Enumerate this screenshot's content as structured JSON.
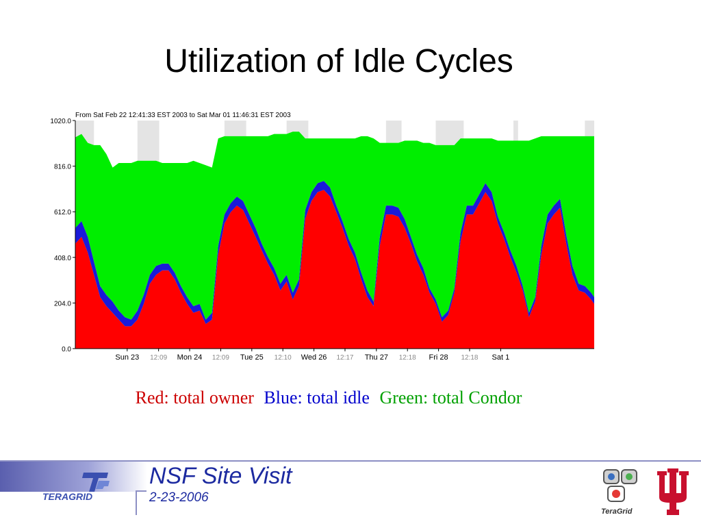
{
  "slide": {
    "title": "Utilization of Idle Cycles",
    "legend": {
      "red": "Red: total owner",
      "blue": "Blue: total idle",
      "green": "Green: total Condor"
    },
    "footer": {
      "title": "NSF Site Visit",
      "date": "2-23-2006",
      "left_logo_text": "TERAGRID",
      "right_logo_text": "TeraGrid"
    }
  },
  "colors": {
    "owner": "#ff0000",
    "idle": "#1a1ad9",
    "condor": "#00ee00",
    "legend_red": "#cc0000",
    "legend_blue": "#0000cc",
    "legend_green": "#00a000",
    "footer_text": "#1c2aa0",
    "iu_red": "#c8102e"
  },
  "chart_data": {
    "type": "area",
    "title": "From Sat Feb 22 12:41:33 EST 2003 to Sat Mar 01 11:46:31 EST 2003",
    "xlabel": "",
    "ylabel": "",
    "ylim": [
      0,
      1020
    ],
    "yticks": [
      "0.0",
      "204.0",
      "408.0",
      "612.0",
      "816.0",
      "1020.0"
    ],
    "xticks": [
      {
        "label": "Sun 23",
        "x": 16.7,
        "style": "day"
      },
      {
        "label": "12:09",
        "x": 26.8,
        "style": "noon"
      },
      {
        "label": "Mon 24",
        "x": 36.8,
        "style": "day"
      },
      {
        "label": "12:09",
        "x": 46.8,
        "style": "noon"
      },
      {
        "label": "Tue 25",
        "x": 56.8,
        "style": "day"
      },
      {
        "label": "12:10",
        "x": 66.8,
        "style": "noon"
      },
      {
        "label": "Wed 26",
        "x": 76.8,
        "style": "day"
      },
      {
        "label": "12:17",
        "x": 86.8,
        "style": "noon"
      },
      {
        "label": "Thu 27",
        "x": 96.9,
        "style": "day"
      },
      {
        "label": "12:18",
        "x": 106.9,
        "style": "noon"
      },
      {
        "label": "Fri 28",
        "x": 116.9,
        "style": "day"
      },
      {
        "label": "12:18",
        "x": 126.9,
        "style": "noon"
      },
      {
        "label": "Sat 1",
        "x": 136.9,
        "style": "day"
      }
    ],
    "x_unit": "hours since start",
    "x": [
      0,
      2,
      4,
      6,
      8,
      10,
      12,
      14,
      16,
      18,
      20,
      22,
      24,
      26,
      28,
      30,
      32,
      34,
      36,
      38,
      40,
      42,
      44,
      46,
      48,
      50,
      52,
      54,
      56,
      58,
      60,
      62,
      64,
      66,
      68,
      70,
      72,
      74,
      76,
      78,
      80,
      82,
      84,
      86,
      88,
      90,
      92,
      94,
      96,
      98,
      100,
      102,
      104,
      106,
      108,
      110,
      112,
      114,
      116,
      118,
      120,
      122,
      124,
      126,
      128,
      130,
      132,
      134,
      136,
      138,
      140,
      142,
      144,
      146,
      148,
      150,
      152,
      154,
      156,
      158,
      160,
      162,
      164,
      166,
      167
    ],
    "series": [
      {
        "name": "total owner",
        "color": "#ff0000",
        "values": [
          470,
          500,
          430,
          330,
          230,
          190,
          160,
          130,
          100,
          100,
          130,
          200,
          290,
          330,
          350,
          350,
          310,
          250,
          200,
          160,
          170,
          110,
          130,
          420,
          560,
          610,
          640,
          620,
          560,
          500,
          440,
          380,
          330,
          260,
          300,
          220,
          280,
          580,
          660,
          700,
          710,
          680,
          610,
          540,
          460,
          400,
          310,
          230,
          190,
          460,
          600,
          600,
          590,
          540,
          470,
          390,
          330,
          250,
          200,
          120,
          150,
          250,
          480,
          600,
          600,
          650,
          700,
          660,
          560,
          490,
          410,
          340,
          260,
          140,
          210,
          420,
          560,
          600,
          630,
          470,
          330,
          260,
          250,
          220,
          200
        ]
      },
      {
        "name": "total idle",
        "color": "#1a1ad9",
        "values": [
          70,
          70,
          70,
          60,
          50,
          50,
          50,
          40,
          40,
          30,
          40,
          40,
          40,
          40,
          30,
          30,
          30,
          30,
          30,
          30,
          30,
          20,
          30,
          40,
          40,
          40,
          40,
          40,
          40,
          40,
          30,
          30,
          30,
          30,
          30,
          30,
          30,
          40,
          40,
          40,
          40,
          40,
          30,
          30,
          30,
          30,
          30,
          30,
          20,
          40,
          40,
          40,
          40,
          40,
          30,
          30,
          30,
          20,
          20,
          20,
          20,
          20,
          40,
          40,
          40,
          40,
          40,
          40,
          30,
          30,
          30,
          30,
          20,
          20,
          20,
          40,
          40,
          40,
          40,
          40,
          40,
          30,
          30,
          30,
          30
        ]
      },
      {
        "name": "total Condor",
        "color": "#00ee00",
        "values": [
          405,
          390,
          420,
          520,
          630,
          630,
          600,
          660,
          690,
          700,
          670,
          600,
          510,
          470,
          450,
          450,
          490,
          550,
          600,
          650,
          630,
          690,
          650,
          480,
          350,
          300,
          270,
          290,
          350,
          410,
          480,
          540,
          600,
          670,
          630,
          720,
          660,
          320,
          240,
          200,
          190,
          220,
          300,
          370,
          450,
          510,
          610,
          690,
          730,
          420,
          280,
          280,
          290,
          350,
          430,
          510,
          560,
          650,
          690,
          770,
          740,
          640,
          420,
          300,
          300,
          250,
          200,
          240,
          340,
          410,
          490,
          560,
          650,
          770,
          710,
          490,
          350,
          310,
          280,
          440,
          580,
          660,
          670,
          700,
          720
        ]
      }
    ],
    "busy_bands": [
      [
        0,
        6
      ],
      [
        20,
        27
      ],
      [
        48,
        55
      ],
      [
        68,
        75
      ],
      [
        100,
        105
      ],
      [
        116,
        125
      ],
      [
        141,
        142.5
      ],
      [
        164,
        167
      ]
    ]
  }
}
